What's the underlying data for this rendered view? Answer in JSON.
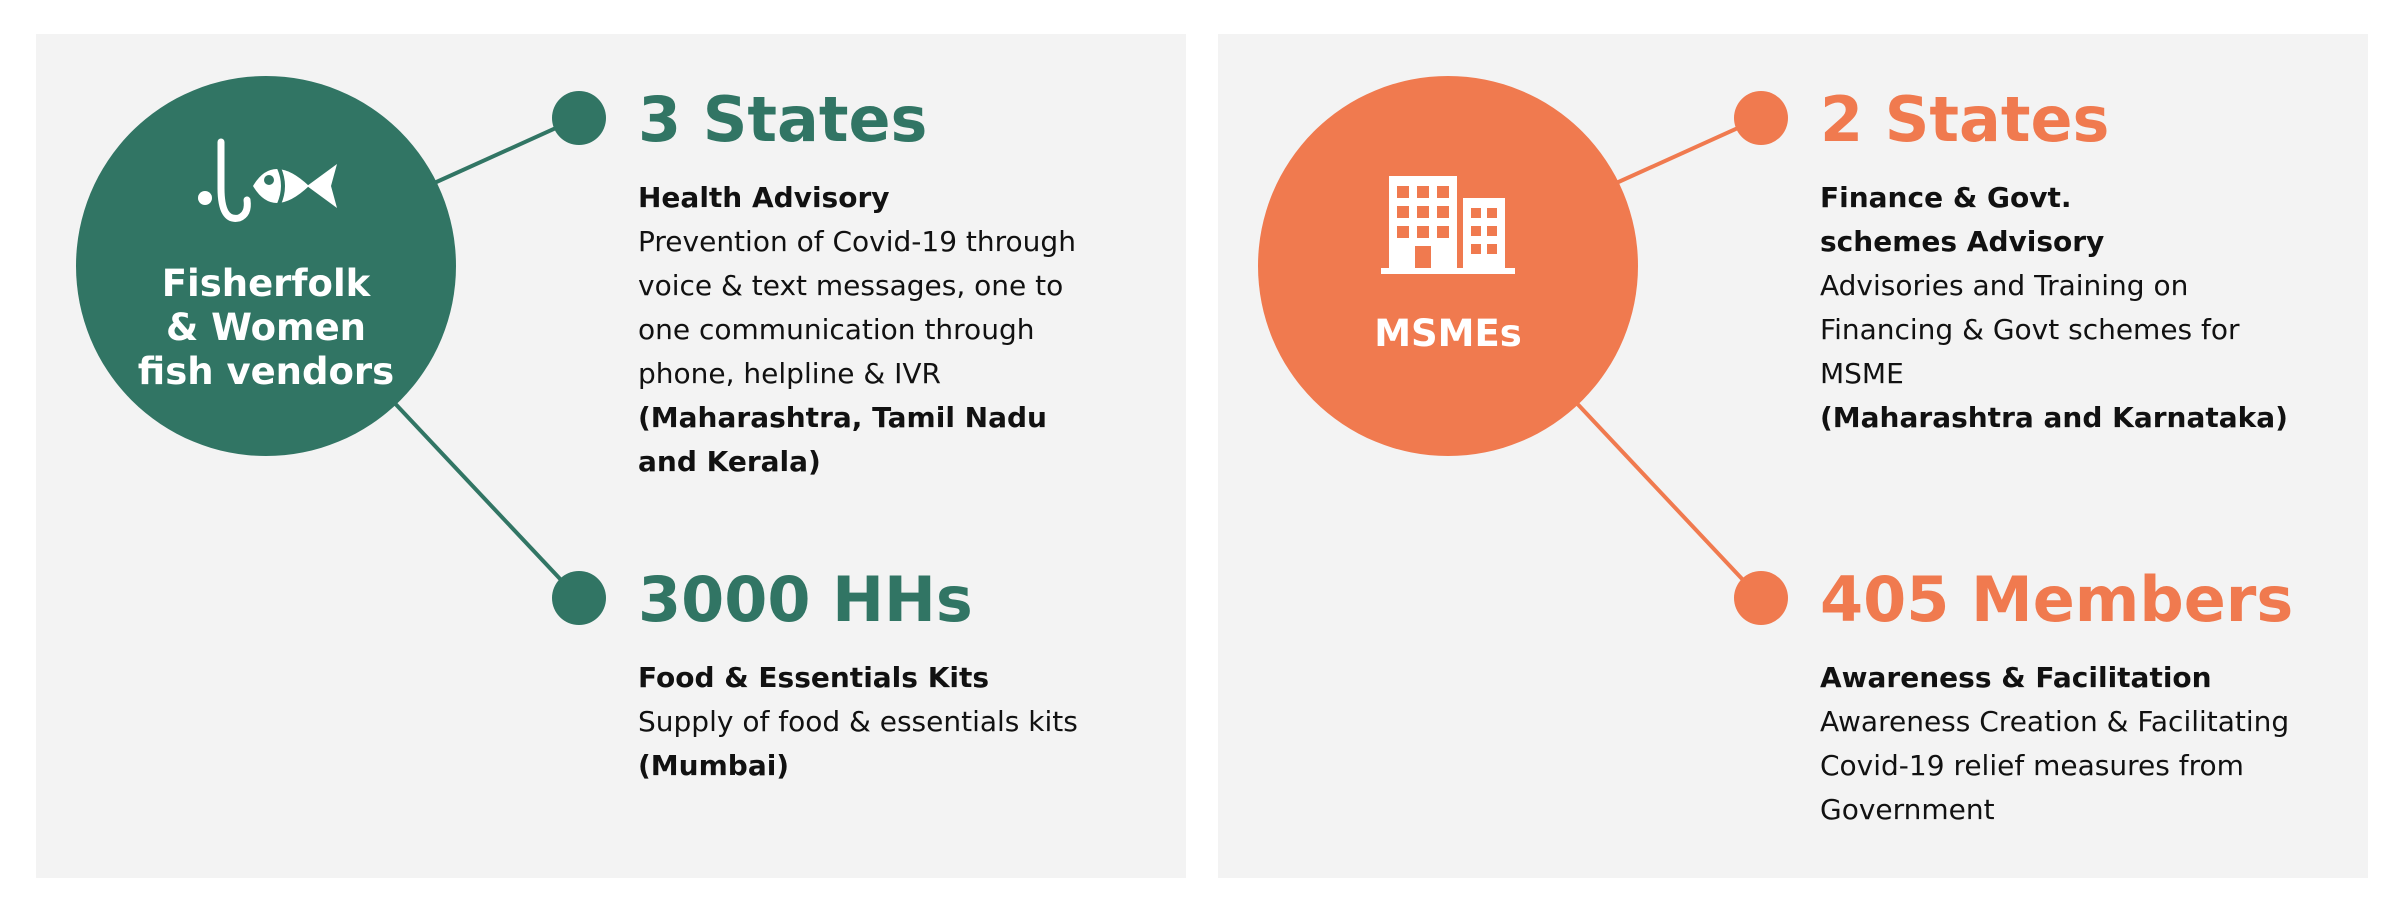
{
  "colors": {
    "green": "#317564",
    "orange": "#f07a4f",
    "panel": "#f3f3f3"
  },
  "panels": [
    {
      "hub": {
        "title": "Fisherfolk\n& Women\nfish vendors",
        "icon": "fishing-hook-fish-icon"
      },
      "blocks": [
        {
          "stat": "3 States",
          "heading": "Health Advisory",
          "body": "Prevention of Covid-19 through voice & text messages, one to one communication through phone, helpline & IVR",
          "region": "(Maharashtra, Tamil Nadu and Kerala)"
        },
        {
          "stat": "3000 HHs",
          "heading": "Food & Essentials Kits",
          "body": "Supply of food & essentials kits",
          "region": "(Mumbai)"
        }
      ]
    },
    {
      "hub": {
        "title": "MSMEs",
        "icon": "office-building-icon"
      },
      "blocks": [
        {
          "stat": "2 States",
          "heading": "Finance & Govt. schemes Advisory",
          "body": "Advisories and Training on Financing & Govt schemes for MSME",
          "region": "(Maharashtra and Karnataka)"
        },
        {
          "stat": "405 Members",
          "heading": "Awareness & Facilitation",
          "body": "Awareness Creation & Facilitating Covid-19 relief measures from Government",
          "region": ""
        }
      ]
    }
  ]
}
